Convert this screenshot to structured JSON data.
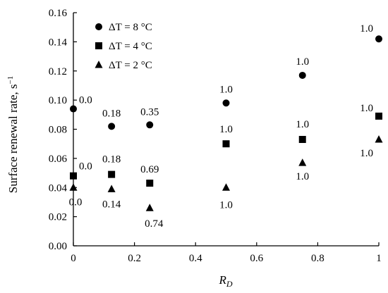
{
  "chart_data": {
    "type": "scatter",
    "title": "",
    "xlabel": "R",
    "xlabel_subscript": "D",
    "ylabel": "Surface renewal rate, s",
    "ylabel_superscript": "−1",
    "xlim": [
      0,
      1
    ],
    "ylim": [
      0,
      0.16
    ],
    "x_ticks": [
      0,
      0.2,
      0.4,
      0.6,
      0.8,
      1
    ],
    "x_tick_labels": [
      "0",
      "0.2",
      "0.4",
      "0.6",
      "0.8",
      "1"
    ],
    "y_ticks": [
      0,
      0.02,
      0.04,
      0.06,
      0.08,
      0.1,
      0.12,
      0.14,
      0.16
    ],
    "y_tick_labels": [
      "0.00",
      "0.02",
      "0.04",
      "0.06",
      "0.08",
      "0.10",
      "0.12",
      "0.14",
      "0.16"
    ],
    "grid": false,
    "legend_position": "top-left",
    "series": [
      {
        "name": "ΔT = 8 °C",
        "marker": "circle",
        "points": [
          {
            "x": 0,
            "y": 0.094,
            "label": "0.0"
          },
          {
            "x": 0.125,
            "y": 0.082,
            "label": "0.18"
          },
          {
            "x": 0.25,
            "y": 0.083,
            "label": "0.35"
          },
          {
            "x": 0.5,
            "y": 0.098,
            "label": "1.0"
          },
          {
            "x": 0.75,
            "y": 0.117,
            "label": "1.0"
          },
          {
            "x": 1,
            "y": 0.142,
            "label": "1.0"
          }
        ]
      },
      {
        "name": "ΔT = 4 °C",
        "marker": "square",
        "points": [
          {
            "x": 0,
            "y": 0.048,
            "label": "0.0"
          },
          {
            "x": 0.125,
            "y": 0.049,
            "label": "0.18"
          },
          {
            "x": 0.25,
            "y": 0.043,
            "label": "0.69"
          },
          {
            "x": 0.5,
            "y": 0.07,
            "label": "1.0"
          },
          {
            "x": 0.75,
            "y": 0.073,
            "label": "1.0"
          },
          {
            "x": 1,
            "y": 0.089,
            "label": "1.0"
          }
        ]
      },
      {
        "name": "ΔT = 2 °C",
        "marker": "triangle",
        "points": [
          {
            "x": 0,
            "y": 0.04,
            "label": "0.0"
          },
          {
            "x": 0.125,
            "y": 0.039,
            "label": "0.14"
          },
          {
            "x": 0.25,
            "y": 0.026,
            "label": "0.74"
          },
          {
            "x": 0.5,
            "y": 0.04,
            "label": "1.0"
          },
          {
            "x": 0.75,
            "y": 0.057,
            "label": "1.0"
          },
          {
            "x": 1,
            "y": 0.073,
            "label": "1.0"
          }
        ]
      }
    ]
  }
}
